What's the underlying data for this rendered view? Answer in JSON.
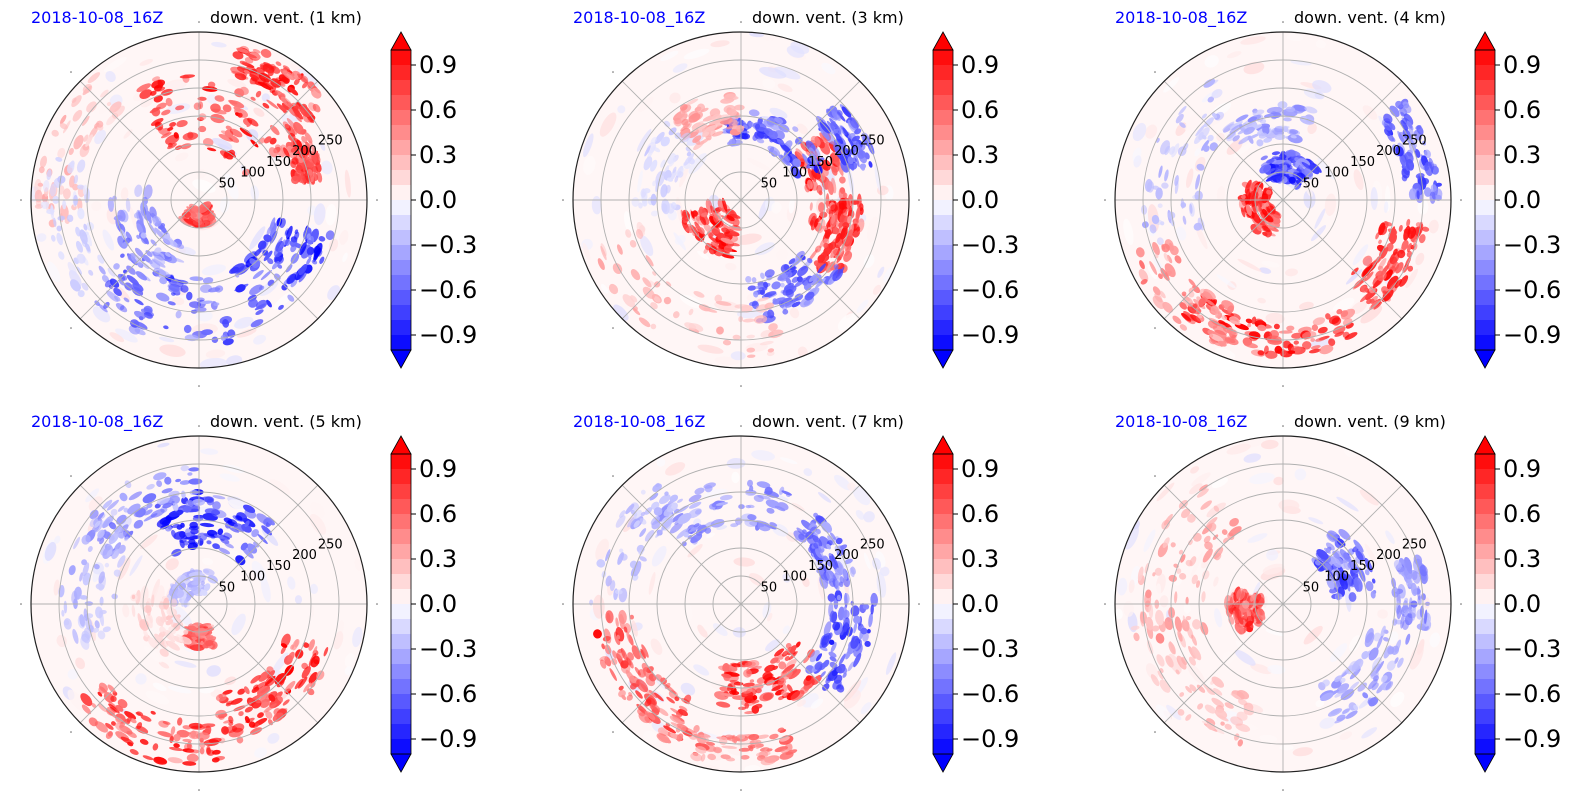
{
  "figure": {
    "panels": [
      {
        "date": "2018-10-08_16Z",
        "title": "down. vent. (1 km)"
      },
      {
        "date": "2018-10-08_16Z",
        "title": "down. vent. (3 km)"
      },
      {
        "date": "2018-10-08_16Z",
        "title": "down. vent. (4 km)"
      },
      {
        "date": "2018-10-08_16Z",
        "title": "down. vent. (5 km)"
      },
      {
        "date": "2018-10-08_16Z",
        "title": "down. vent. (7 km)"
      },
      {
        "date": "2018-10-08_16Z",
        "title": "down. vent. (9 km)"
      }
    ]
  },
  "chart_data": [
    {
      "type": "heatmap",
      "projection": "polar",
      "date_label": "2018-10-08_16Z",
      "title": "down. vent. (1 km)",
      "radial_ticks": [
        50,
        100,
        150,
        200,
        250
      ],
      "radial_tick_labels": [
        "50",
        "100",
        "150",
        "200",
        "250"
      ],
      "colorbar": {
        "ticks": [
          0.9,
          0.6,
          0.3,
          0.0,
          -0.3,
          -0.6,
          -0.9
        ],
        "tick_labels": [
          "0.9",
          "0.6",
          "0.3",
          "0.0",
          "−0.3",
          "−0.6",
          "−0.9"
        ],
        "vmin": -1.0,
        "vmax": 1.0,
        "extend": "both",
        "colormap": "bwr",
        "low_color": "#0000ff",
        "mid_color": "#ffffff",
        "high_color": "#ff0000"
      },
      "features": [
        {
          "r": 160,
          "deg": 75,
          "value": 0.95,
          "sr": 70,
          "st": 45
        },
        {
          "r": 260,
          "deg": 55,
          "value": 0.9,
          "sr": 30,
          "st": 20
        },
        {
          "r": 30,
          "deg": 270,
          "value": 0.8,
          "sr": 15,
          "st": 40
        },
        {
          "r": 200,
          "deg": 20,
          "value": 0.8,
          "sr": 25,
          "st": 10
        },
        {
          "r": 190,
          "deg": 320,
          "value": -0.9,
          "sr": 55,
          "st": 25
        },
        {
          "r": 200,
          "deg": 250,
          "value": -0.7,
          "sr": 60,
          "st": 35
        },
        {
          "r": 120,
          "deg": 210,
          "value": -0.5,
          "sr": 40,
          "st": 40
        },
        {
          "r": 250,
          "deg": 160,
          "value": 0.3,
          "sr": 40,
          "st": 30
        },
        {
          "r": 240,
          "deg": 190,
          "value": -0.2,
          "sr": 40,
          "st": 30
        }
      ]
    },
    {
      "type": "heatmap",
      "projection": "polar",
      "date_label": "2018-10-08_16Z",
      "title": "down. vent. (3 km)",
      "radial_ticks": [
        50,
        100,
        150,
        200,
        250
      ],
      "radial_tick_labels": [
        "50",
        "100",
        "150",
        "200",
        "250"
      ],
      "colorbar": {
        "ticks": [
          0.9,
          0.6,
          0.3,
          0.0,
          -0.3,
          -0.6,
          -0.9
        ],
        "tick_labels": [
          "0.9",
          "0.6",
          "0.3",
          "0.0",
          "−0.3",
          "−0.6",
          "−0.9"
        ],
        "vmin": -1.0,
        "vmax": 1.0,
        "extend": "both",
        "colormap": "bwr",
        "low_color": "#0000ff",
        "mid_color": "#ffffff",
        "high_color": "#ff0000"
      },
      "features": [
        {
          "r": 70,
          "deg": 225,
          "value": 0.95,
          "sr": 40,
          "st": 35
        },
        {
          "r": 160,
          "deg": 10,
          "value": 0.9,
          "sr": 40,
          "st": 30
        },
        {
          "r": 190,
          "deg": 340,
          "value": 0.85,
          "sr": 30,
          "st": 20
        },
        {
          "r": 130,
          "deg": 60,
          "value": -0.8,
          "sr": 30,
          "st": 40
        },
        {
          "r": 180,
          "deg": 300,
          "value": -0.7,
          "sr": 40,
          "st": 25
        },
        {
          "r": 220,
          "deg": 30,
          "value": -0.7,
          "sr": 30,
          "st": 15
        },
        {
          "r": 160,
          "deg": 110,
          "value": 0.4,
          "sr": 40,
          "st": 20
        },
        {
          "r": 230,
          "deg": 240,
          "value": 0.3,
          "sr": 50,
          "st": 45
        },
        {
          "r": 150,
          "deg": 160,
          "value": -0.2,
          "sr": 40,
          "st": 30
        }
      ]
    },
    {
      "type": "heatmap",
      "projection": "polar",
      "date_label": "2018-10-08_16Z",
      "title": "down. vent. (4 km)",
      "radial_ticks": [
        50,
        100,
        150,
        200,
        250
      ],
      "radial_tick_labels": [
        "50",
        "100",
        "150",
        "200",
        "250"
      ],
      "colorbar": {
        "ticks": [
          0.9,
          0.6,
          0.3,
          0.0,
          -0.3,
          -0.6,
          -0.9
        ],
        "tick_labels": [
          "0.9",
          "0.6",
          "0.3",
          "0.0",
          "−0.3",
          "−0.6",
          "−0.9"
        ],
        "vmin": -1.0,
        "vmax": 1.0,
        "extend": "both",
        "colormap": "bwr",
        "low_color": "#0000ff",
        "mid_color": "#ffffff",
        "high_color": "#ff0000"
      },
      "features": [
        {
          "r": 50,
          "deg": 200,
          "value": 0.9,
          "sr": 25,
          "st": 50
        },
        {
          "r": 250,
          "deg": 265,
          "value": 0.95,
          "sr": 30,
          "st": 35
        },
        {
          "r": 220,
          "deg": 330,
          "value": 0.9,
          "sr": 40,
          "st": 20
        },
        {
          "r": 60,
          "deg": 80,
          "value": -0.8,
          "sr": 25,
          "st": 40
        },
        {
          "r": 250,
          "deg": 20,
          "value": -0.7,
          "sr": 30,
          "st": 20
        },
        {
          "r": 140,
          "deg": 100,
          "value": -0.4,
          "sr": 30,
          "st": 30
        },
        {
          "r": 200,
          "deg": 160,
          "value": -0.3,
          "sr": 50,
          "st": 40
        },
        {
          "r": 250,
          "deg": 225,
          "value": 0.5,
          "sr": 40,
          "st": 25
        }
      ]
    },
    {
      "type": "heatmap",
      "projection": "polar",
      "date_label": "2018-10-08_16Z",
      "title": "down. vent. (5 km)",
      "radial_ticks": [
        50,
        100,
        150,
        200,
        250
      ],
      "radial_tick_labels": [
        "50",
        "100",
        "150",
        "200",
        "250"
      ],
      "colorbar": {
        "ticks": [
          0.9,
          0.6,
          0.3,
          0.0,
          -0.3,
          -0.6,
          -0.9
        ],
        "tick_labels": [
          "0.9",
          "0.6",
          "0.3",
          "0.0",
          "−0.3",
          "−0.6",
          "−0.9"
        ],
        "vmin": -1.0,
        "vmax": 1.0,
        "extend": "both",
        "colormap": "bwr",
        "low_color": "#0000ff",
        "mid_color": "#ffffff",
        "high_color": "#ff0000"
      },
      "features": [
        {
          "r": 150,
          "deg": 80,
          "value": -0.9,
          "sr": 50,
          "st": 35
        },
        {
          "r": 210,
          "deg": 120,
          "value": -0.5,
          "sr": 40,
          "st": 30
        },
        {
          "r": 210,
          "deg": 310,
          "value": 0.95,
          "sr": 45,
          "st": 30
        },
        {
          "r": 250,
          "deg": 250,
          "value": 0.85,
          "sr": 40,
          "st": 30
        },
        {
          "r": 60,
          "deg": 270,
          "value": 0.7,
          "sr": 20,
          "st": 20
        },
        {
          "r": 200,
          "deg": 170,
          "value": -0.3,
          "sr": 50,
          "st": 30
        },
        {
          "r": 40,
          "deg": 120,
          "value": -0.3,
          "sr": 20,
          "st": 60
        },
        {
          "r": 80,
          "deg": 210,
          "value": 0.2,
          "sr": 40,
          "st": 40
        }
      ]
    },
    {
      "type": "heatmap",
      "projection": "polar",
      "date_label": "2018-10-08_16Z",
      "title": "down. vent. (7 km)",
      "radial_ticks": [
        50,
        100,
        150,
        200,
        250
      ],
      "radial_tick_labels": [
        "50",
        "100",
        "150",
        "200",
        "250"
      ],
      "colorbar": {
        "ticks": [
          0.9,
          0.6,
          0.3,
          0.0,
          -0.3,
          -0.6,
          -0.9
        ],
        "tick_labels": [
          "0.9",
          "0.6",
          "0.3",
          "0.0",
          "−0.3",
          "−0.6",
          "−0.9"
        ],
        "vmin": -1.0,
        "vmax": 1.0,
        "extend": "both",
        "colormap": "bwr",
        "low_color": "#0000ff",
        "mid_color": "#ffffff",
        "high_color": "#ff0000"
      },
      "features": [
        {
          "r": 150,
          "deg": 290,
          "value": 0.95,
          "sr": 45,
          "st": 35
        },
        {
          "r": 230,
          "deg": 215,
          "value": 0.8,
          "sr": 40,
          "st": 30
        },
        {
          "r": 260,
          "deg": 260,
          "value": 0.6,
          "sr": 25,
          "st": 30
        },
        {
          "r": 200,
          "deg": 340,
          "value": -0.8,
          "sr": 40,
          "st": 25
        },
        {
          "r": 180,
          "deg": 100,
          "value": -0.5,
          "sr": 40,
          "st": 35
        },
        {
          "r": 230,
          "deg": 150,
          "value": -0.3,
          "sr": 40,
          "st": 30
        },
        {
          "r": 180,
          "deg": 30,
          "value": -0.6,
          "sr": 30,
          "st": 20
        }
      ]
    },
    {
      "type": "heatmap",
      "projection": "polar",
      "date_label": "2018-10-08_16Z",
      "title": "down. vent. (9 km)",
      "radial_ticks": [
        50,
        100,
        150,
        200,
        250
      ],
      "radial_tick_labels": [
        "50",
        "100",
        "150",
        "200",
        "250"
      ],
      "colorbar": {
        "ticks": [
          0.9,
          0.6,
          0.3,
          0.0,
          -0.3,
          -0.6,
          -0.9
        ],
        "tick_labels": [
          "0.9",
          "0.6",
          "0.3",
          "0.0",
          "−0.3",
          "−0.6",
          "−0.9"
        ],
        "vmin": -1.0,
        "vmax": 1.0,
        "extend": "both",
        "colormap": "bwr",
        "low_color": "#0000ff",
        "mid_color": "#ffffff",
        "high_color": "#ff0000"
      },
      "features": [
        {
          "r": 70,
          "deg": 190,
          "value": 0.8,
          "sr": 30,
          "st": 25
        },
        {
          "r": 200,
          "deg": 160,
          "value": 0.4,
          "sr": 60,
          "st": 40
        },
        {
          "r": 220,
          "deg": 220,
          "value": 0.35,
          "sr": 50,
          "st": 35
        },
        {
          "r": 130,
          "deg": 30,
          "value": -0.7,
          "sr": 40,
          "st": 25
        },
        {
          "r": 200,
          "deg": 320,
          "value": -0.4,
          "sr": 40,
          "st": 25
        },
        {
          "r": 230,
          "deg": 5,
          "value": -0.5,
          "sr": 30,
          "st": 15
        }
      ]
    }
  ]
}
